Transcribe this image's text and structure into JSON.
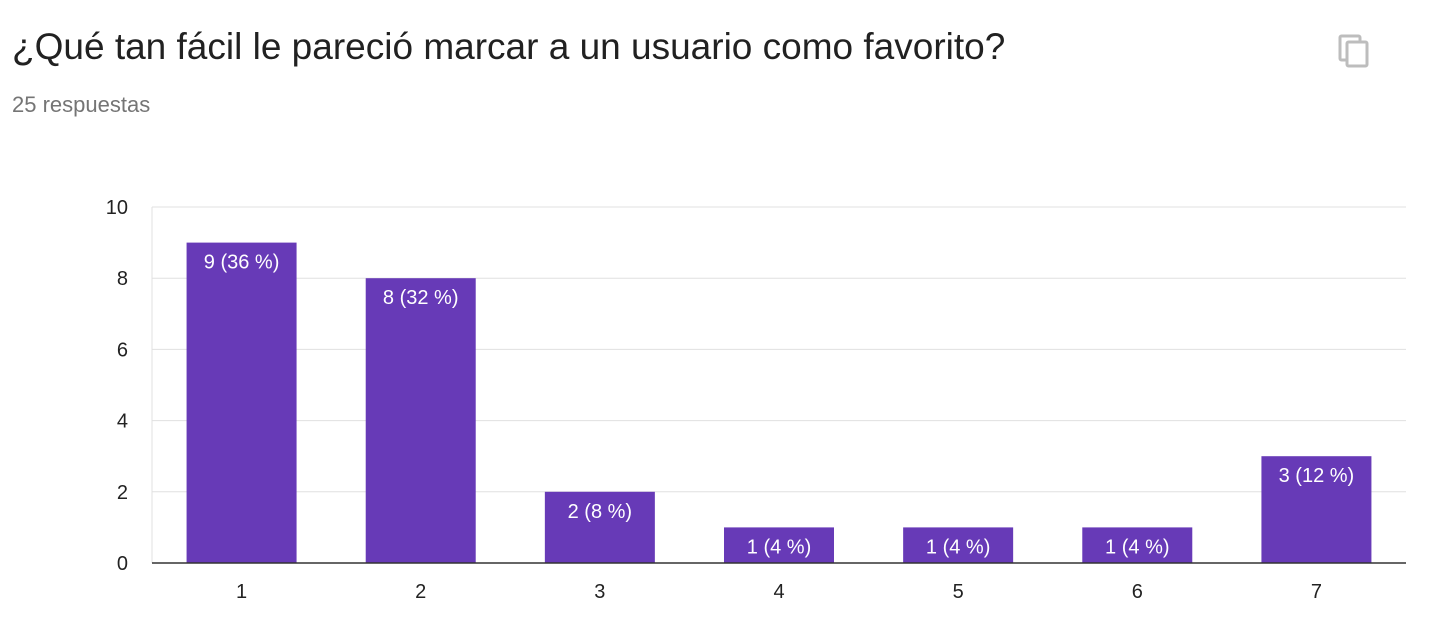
{
  "question": {
    "title": "¿Qué tan fácil le pareció marcar a un usuario como favorito?",
    "responses": "25 respuestas"
  },
  "copy_button": {
    "icon": "copy-icon"
  },
  "colors": {
    "bar": "#673ab7",
    "grid": "#e0e0e0",
    "axis": "#333333"
  },
  "chart_data": {
    "type": "bar",
    "categories": [
      "1",
      "2",
      "3",
      "4",
      "5",
      "6",
      "7"
    ],
    "values": [
      9,
      8,
      2,
      1,
      1,
      1,
      3
    ],
    "data_labels": [
      "9 (36 %)",
      "8 (32 %)",
      "2 (8 %)",
      "1 (4 %)",
      "1 (4 %)",
      "1 (4 %)",
      "3 (12 %)"
    ],
    "ylim": [
      0,
      10
    ],
    "yticks": [
      0,
      2,
      4,
      6,
      8,
      10
    ],
    "grid": true,
    "legend": "none"
  }
}
